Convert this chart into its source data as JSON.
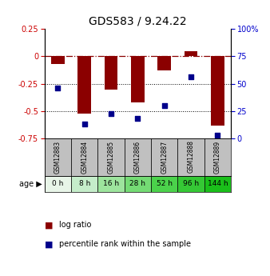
{
  "title": "GDS583 / 9.24.22",
  "samples": [
    "GSM12883",
    "GSM12884",
    "GSM12885",
    "GSM12886",
    "GSM12887",
    "GSM12888",
    "GSM12889"
  ],
  "ages": [
    "0 h",
    "8 h",
    "16 h",
    "28 h",
    "52 h",
    "96 h",
    "144 h"
  ],
  "log_ratio": [
    -0.07,
    -0.52,
    -0.3,
    -0.42,
    -0.13,
    0.05,
    -0.63
  ],
  "percentile_rank": [
    46,
    13,
    23,
    18,
    30,
    56,
    3
  ],
  "ylim_left": [
    -0.75,
    0.25
  ],
  "ylim_right": [
    0,
    100
  ],
  "yticks_left": [
    0.25,
    0,
    -0.25,
    -0.5,
    -0.75
  ],
  "yticks_right": [
    100,
    75,
    50,
    25,
    0
  ],
  "bar_color": "#8B0000",
  "scatter_color": "#00008B",
  "dashed_line_color": "#8B0000",
  "grid_color": "#000000",
  "age_colors": [
    "#e8f5e8",
    "#c5edca",
    "#9de49d",
    "#74db74",
    "#4bd24b",
    "#35c835",
    "#1abf1a"
  ],
  "sample_bg_color": "#c0c0c0",
  "title_fontsize": 10,
  "legend_red_label": "log ratio",
  "legend_blue_label": "percentile rank within the sample"
}
